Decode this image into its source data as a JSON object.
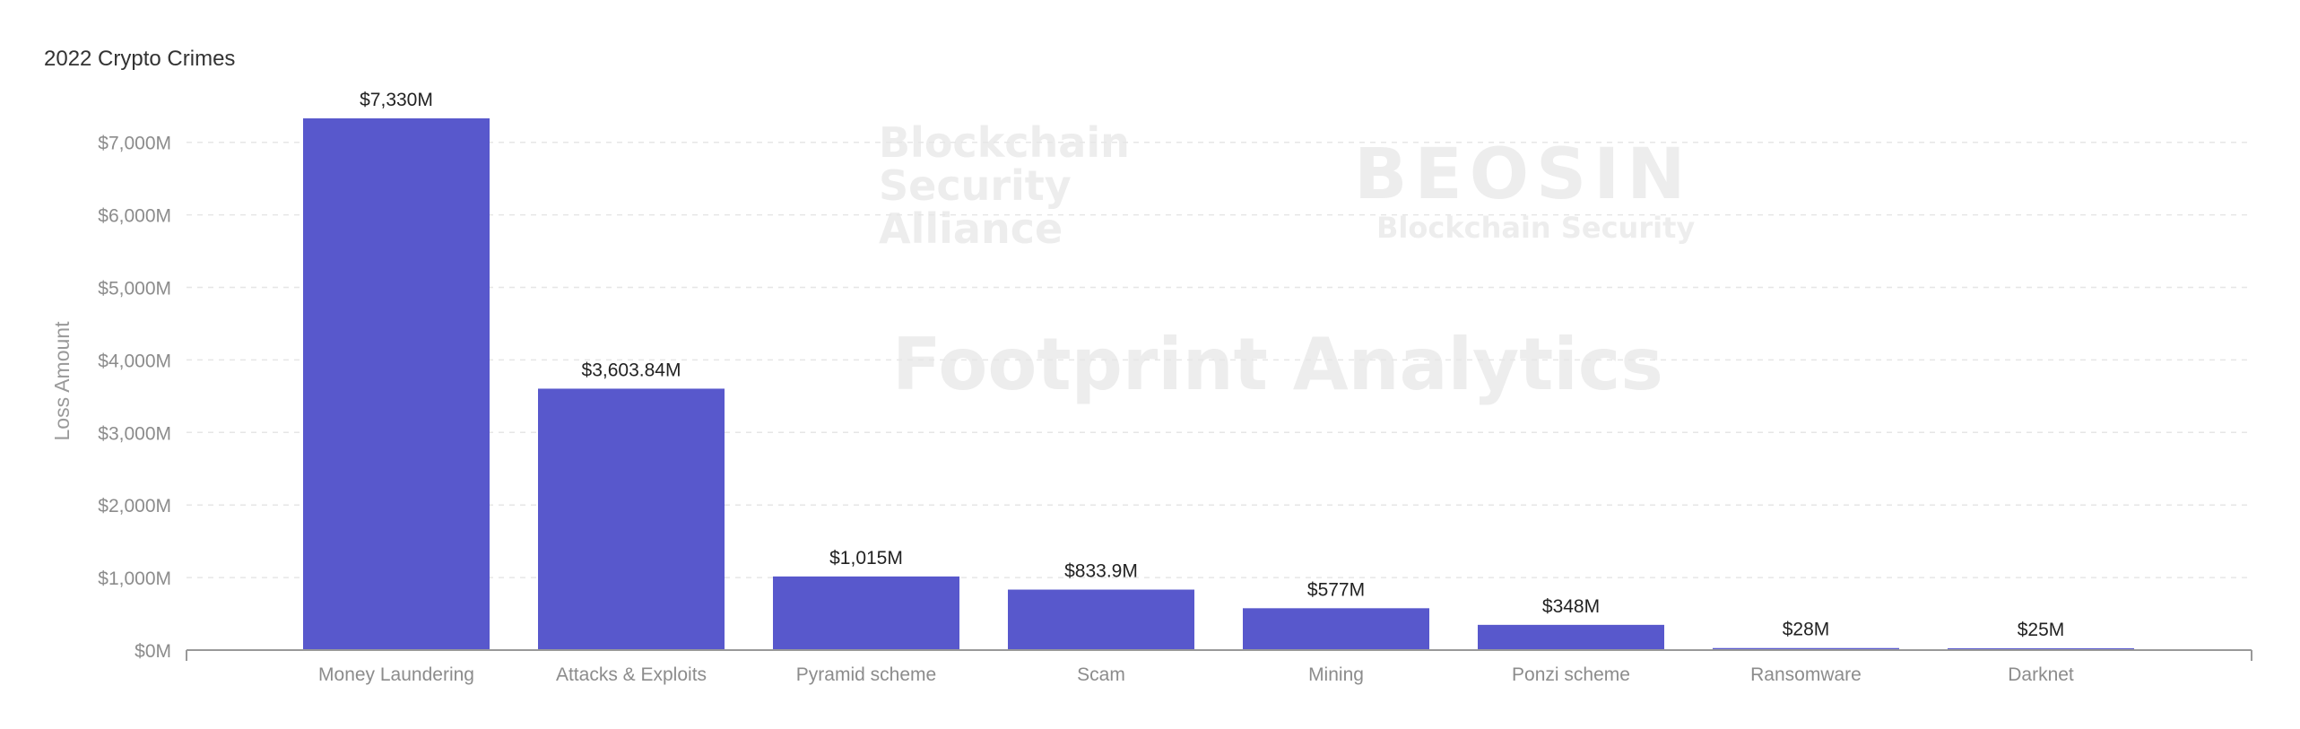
{
  "chart_data": {
    "type": "bar",
    "title": "2022 Crypto Crimes",
    "xlabel": "",
    "ylabel": "Loss Amount",
    "categories": [
      "Money Laundering",
      "Attacks & Exploits",
      "Pyramid scheme",
      "Scam",
      "Mining",
      "Ponzi scheme",
      "Ransomware",
      "Darknet"
    ],
    "values": [
      7330,
      3603.84,
      1015,
      833.9,
      577,
      348,
      28,
      25
    ],
    "data_labels": [
      "$7,330M",
      "$3,603.84M",
      "$1,015M",
      "$833.9M",
      "$577M",
      "$348M",
      "$28M",
      "$25M"
    ],
    "yticks": [
      0,
      1000,
      2000,
      3000,
      4000,
      5000,
      6000,
      7000
    ],
    "ytick_labels": [
      "$0M",
      "$1,000M",
      "$2,000M",
      "$3,000M",
      "$4,000M",
      "$5,000M",
      "$6,000M",
      "$7,000M"
    ],
    "ylim": [
      0,
      7000
    ],
    "grid": true,
    "legend": "none",
    "bar_color": "#5858CC"
  },
  "watermarks": {
    "alliance": "Blockchain Security Alliance",
    "beosin": "BEOSIN",
    "beosin_sub": "Blockchain Security",
    "footprint": "Footprint Analytics"
  }
}
